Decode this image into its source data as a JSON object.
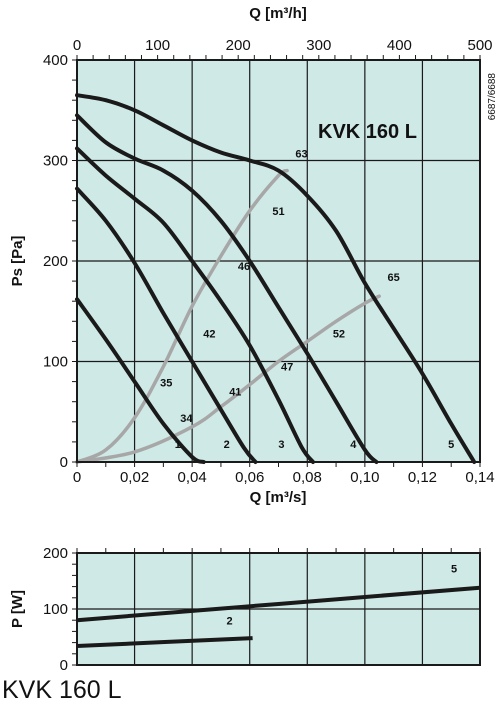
{
  "model_title": "KVK 160 L",
  "caption": "KVK 160 L",
  "side_code": "6687/6688",
  "colors": {
    "panel": "#cfe9e6",
    "curve": "#1a1a1a",
    "efficiency": "#a7a7a7",
    "grid": "#1a1a1a"
  },
  "chart_data": [
    {
      "type": "line",
      "xlabel": "Q [m³/s]",
      "ylabel": "Ps [Pa]",
      "x2label": "Q [m³/h]",
      "xlim": [
        0,
        0.14
      ],
      "ylim": [
        0,
        400
      ],
      "x2lim": [
        0,
        500
      ],
      "x_ticks": [
        0,
        0.02,
        0.04,
        0.06,
        0.08,
        0.1,
        0.12,
        0.14
      ],
      "x_tick_labels": [
        "0",
        "0,02",
        "0,04",
        "0,06",
        "0,08",
        "0,10",
        "0,12",
        "0,14"
      ],
      "y_ticks": [
        0,
        100,
        200,
        300,
        400
      ],
      "y_tick_labels": [
        "0",
        "100",
        "200",
        "300",
        "400"
      ],
      "x2_ticks": [
        0,
        100,
        200,
        300,
        400,
        500
      ],
      "x2_tick_labels": [
        "0",
        "100",
        "200",
        "300",
        "400",
        "500"
      ],
      "grid": true,
      "series": [
        {
          "label": "1",
          "x": [
            0,
            0.01,
            0.02,
            0.03,
            0.04,
            0.044
          ],
          "y": [
            162,
            122,
            80,
            38,
            5,
            0
          ],
          "label_at": [
            0.035,
            14
          ]
        },
        {
          "label": "2",
          "x": [
            0,
            0.01,
            0.02,
            0.03,
            0.04,
            0.05,
            0.058,
            0.062
          ],
          "y": [
            272,
            240,
            198,
            148,
            100,
            52,
            14,
            0
          ],
          "label_at": [
            0.052,
            14
          ]
        },
        {
          "label": "3",
          "x": [
            0,
            0.01,
            0.02,
            0.03,
            0.04,
            0.05,
            0.06,
            0.07,
            0.078,
            0.082
          ],
          "y": [
            312,
            285,
            262,
            238,
            200,
            160,
            116,
            62,
            15,
            0
          ],
          "label_at": [
            0.071,
            14
          ]
        },
        {
          "label": "4",
          "x": [
            0,
            0.01,
            0.02,
            0.03,
            0.04,
            0.05,
            0.06,
            0.07,
            0.08,
            0.09,
            0.1,
            0.104
          ],
          "y": [
            345,
            318,
            302,
            290,
            270,
            240,
            200,
            154,
            108,
            60,
            12,
            0
          ],
          "label_at": [
            0.096,
            14
          ]
        },
        {
          "label": "5",
          "x": [
            0,
            0.01,
            0.02,
            0.03,
            0.04,
            0.05,
            0.06,
            0.07,
            0.08,
            0.09,
            0.1,
            0.11,
            0.12,
            0.13,
            0.138
          ],
          "y": [
            365,
            360,
            350,
            335,
            320,
            308,
            300,
            290,
            265,
            230,
            178,
            133,
            88,
            38,
            0
          ],
          "label_at": [
            0.13,
            14
          ]
        }
      ],
      "efficiency_series": [
        {
          "x": [
            0,
            0.01,
            0.02,
            0.03,
            0.04,
            0.05,
            0.06,
            0.07,
            0.073
          ],
          "y": [
            0,
            12,
            44,
            95,
            155,
            205,
            250,
            285,
            290
          ]
        },
        {
          "x": [
            0,
            0.02,
            0.04,
            0.05,
            0.06,
            0.07,
            0.08,
            0.09,
            0.1,
            0.105
          ],
          "y": [
            0,
            10,
            35,
            55,
            77,
            100,
            120,
            140,
            158,
            165
          ]
        }
      ],
      "efficiency_labels": [
        {
          "text": "63",
          "x": 0.078,
          "y": 303
        },
        {
          "text": "51",
          "x": 0.07,
          "y": 246
        },
        {
          "text": "46",
          "x": 0.058,
          "y": 191
        },
        {
          "text": "42",
          "x": 0.046,
          "y": 124
        },
        {
          "text": "35",
          "x": 0.031,
          "y": 75
        },
        {
          "text": "34",
          "x": 0.038,
          "y": 40
        },
        {
          "text": "41",
          "x": 0.055,
          "y": 66
        },
        {
          "text": "47",
          "x": 0.073,
          "y": 91
        },
        {
          "text": "52",
          "x": 0.091,
          "y": 124
        },
        {
          "text": "65",
          "x": 0.11,
          "y": 180
        }
      ]
    },
    {
      "type": "line",
      "xlabel": "",
      "ylabel": "P [W]",
      "xlim": [
        0,
        0.14
      ],
      "ylim": [
        0,
        200
      ],
      "y_ticks": [
        0,
        100,
        200
      ],
      "y_tick_labels": [
        "0",
        "100",
        "200"
      ],
      "grid": true,
      "series": [
        {
          "label": "2",
          "x": [
            0,
            0.061
          ],
          "y": [
            34,
            48
          ],
          "label_at": [
            0.053,
            72
          ]
        },
        {
          "label": "5",
          "x": [
            0,
            0.14
          ],
          "y": [
            80,
            138
          ],
          "label_at": [
            0.131,
            165
          ]
        }
      ]
    }
  ]
}
